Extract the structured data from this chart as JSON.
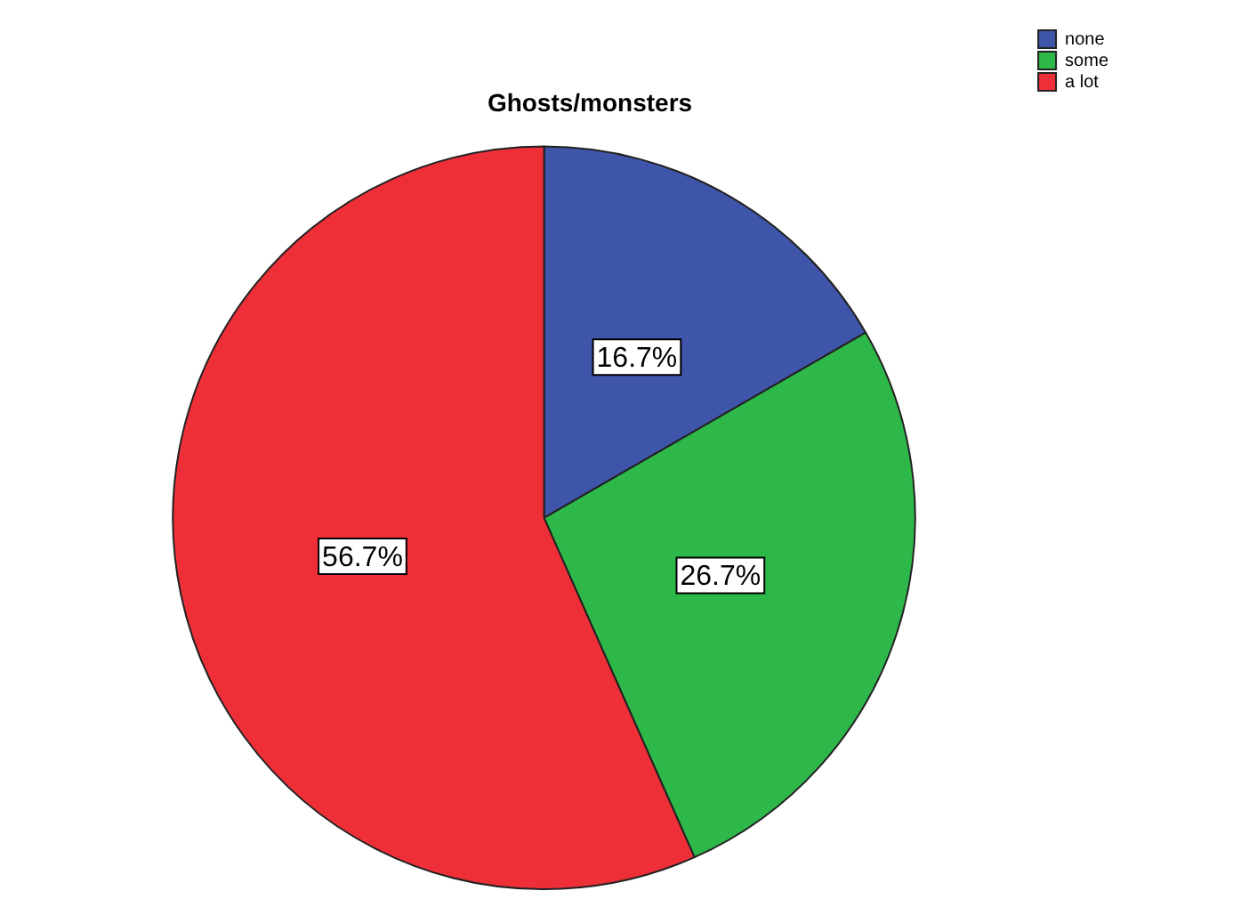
{
  "chart_data": {
    "type": "pie",
    "title": "Ghosts/monsters",
    "categories": [
      "none",
      "some",
      "a lot"
    ],
    "values": [
      16.7,
      26.7,
      56.7
    ],
    "value_labels": [
      "16.7%",
      "26.7%",
      "56.7%"
    ],
    "colors": [
      "#3f55a9",
      "#2fb84a",
      "#ee2f38"
    ],
    "legend": "top right"
  }
}
